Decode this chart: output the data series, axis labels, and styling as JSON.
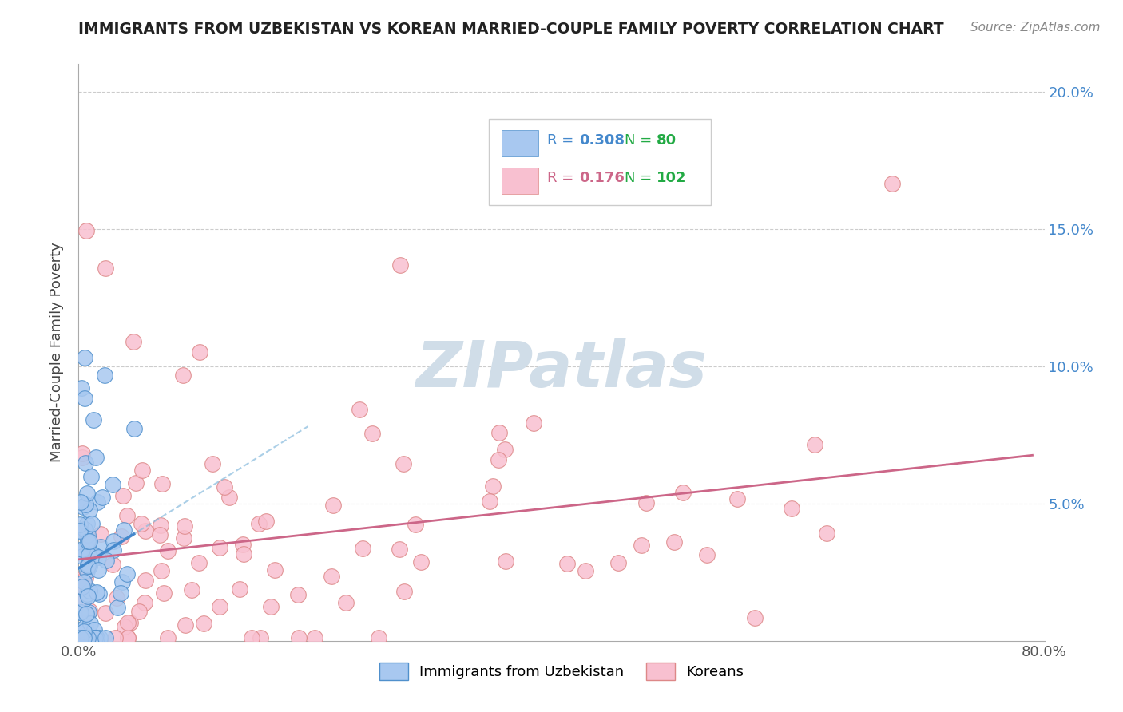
{
  "title": "IMMIGRANTS FROM UZBEKISTAN VS KOREAN MARRIED-COUPLE FAMILY POVERTY CORRELATION CHART",
  "source": "Source: ZipAtlas.com",
  "ylabel": "Married-Couple Family Poverty",
  "xlim": [
    0,
    0.8
  ],
  "ylim": [
    0,
    0.21
  ],
  "yticks": [
    0.0,
    0.05,
    0.1,
    0.15,
    0.2
  ],
  "ytick_labels_right": [
    "",
    "5.0%",
    "10.0%",
    "15.0%",
    "20.0%"
  ],
  "blue_color": "#a8c8f0",
  "blue_edge": "#5090cc",
  "blue_line": "#4488cc",
  "blue_dash": "#88bbdd",
  "pink_color": "#f8c0d0",
  "pink_edge": "#dd8888",
  "pink_line": "#cc6688",
  "watermark_color": "#d0dde8",
  "r_blue": "0.308",
  "n_blue": "80",
  "r_pink": "0.176",
  "n_pink": "102",
  "text_blue": "#4488cc",
  "text_pink": "#cc6688",
  "text_green": "#22aa44"
}
